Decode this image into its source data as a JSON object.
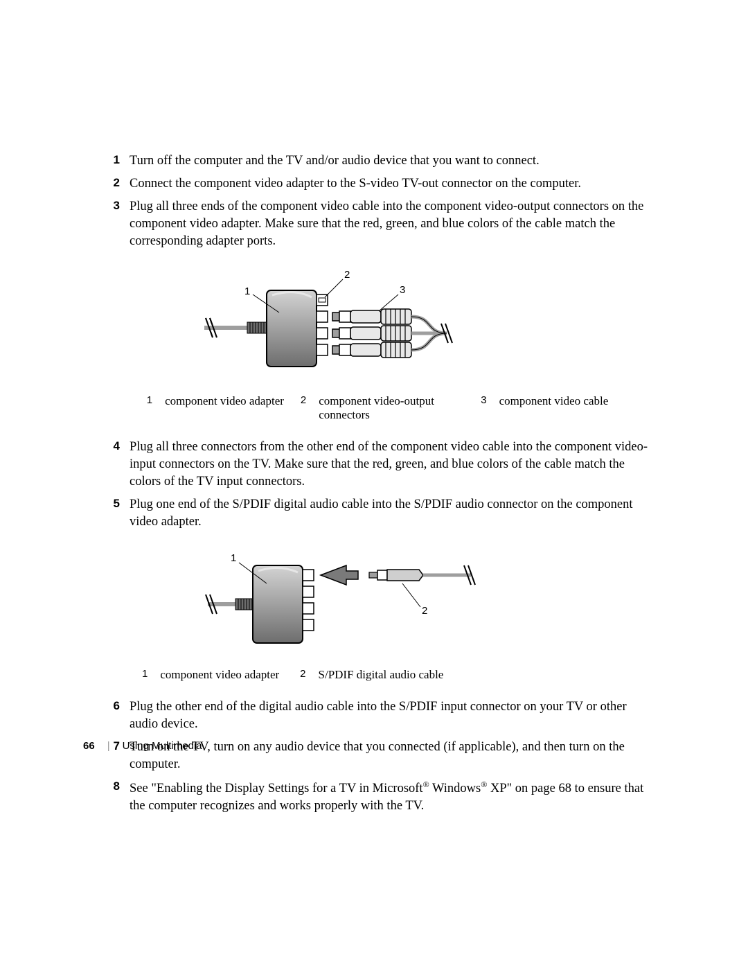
{
  "steps_a": [
    {
      "n": "1",
      "text": "Turn off the computer and the TV and/or audio device that you want to connect."
    },
    {
      "n": "2",
      "text": "Connect the component video adapter to the S-video TV-out connector on the computer."
    },
    {
      "n": "3",
      "text": "Plug all three ends of the component video cable into the component video-output connectors on the component video adapter. Make sure that the red, green, and blue colors of the cable match the corresponding adapter ports."
    }
  ],
  "figure1": {
    "callouts": {
      "c1": "1",
      "c2": "2",
      "c3": "3"
    },
    "colors": {
      "body_light": "#b5b5b5",
      "body_dark": "#6d6d6d",
      "stroke": "#000000",
      "cable": "#9e9e9e",
      "plug_body": "#e8e8e8",
      "plug_grip": "#bdbdbd"
    },
    "legend": [
      {
        "n": "1",
        "text": "component video adapter"
      },
      {
        "n": "2",
        "text": "component video-output connectors"
      },
      {
        "n": "3",
        "text": "component video cable"
      }
    ]
  },
  "steps_b": [
    {
      "n": "4",
      "text": "Plug all three connectors from the other end of the component video cable into the component video-input connectors on the TV. Make sure that the red, green, and blue colors of the cable match the colors of the TV input connectors."
    },
    {
      "n": "5",
      "text": "Plug one end of the S/PDIF digital audio cable into the S/PDIF audio connector on the component video adapter."
    }
  ],
  "figure2": {
    "callouts": {
      "c1": "1",
      "c2": "2"
    },
    "colors": {
      "body_light": "#b5b5b5",
      "body_dark": "#6d6d6d",
      "stroke": "#000000",
      "cable": "#9e9e9e",
      "arrow": "#7a7a7a",
      "plug_body": "#cfcfcf"
    },
    "legend": [
      {
        "n": "1",
        "text": "component video adapter"
      },
      {
        "n": "2",
        "text": "S/PDIF digital audio cable"
      }
    ]
  },
  "steps_c": [
    {
      "n": "6",
      "text": "Plug the other end of the digital audio cable into the S/PDIF input connector on your TV or other audio device."
    },
    {
      "n": "7",
      "text": "Turn on the TV, turn on any audio device that you connected (if applicable), and then turn on the computer."
    },
    {
      "n": "8",
      "html": "See \"Enabling the Display Settings for a TV in Microsoft<sup class='reg'>®</sup> Windows<sup class='reg'>®</sup> XP\" on page 68 to ensure that the computer recognizes and works properly with the TV."
    }
  ],
  "footer": {
    "page": "66",
    "sep": "|",
    "section": "Using Multimedia"
  }
}
